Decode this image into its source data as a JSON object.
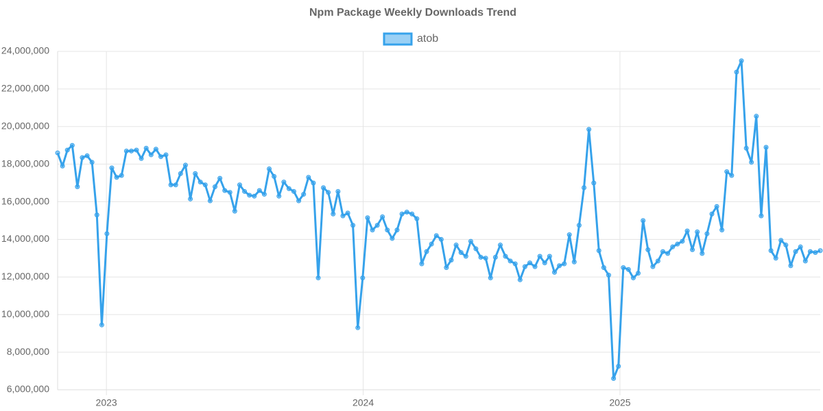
{
  "chart_data": {
    "type": "line",
    "title": "Npm Package Weekly Downloads Trend",
    "x": [
      2022.81,
      2022.829,
      2022.848,
      2022.867,
      2022.887,
      2022.906,
      2022.925,
      2022.944,
      2022.963,
      2022.982,
      2023.002,
      2023.021,
      2023.04,
      2023.059,
      2023.078,
      2023.097,
      2023.117,
      2023.136,
      2023.155,
      2023.174,
      2023.193,
      2023.212,
      2023.232,
      2023.251,
      2023.27,
      2023.289,
      2023.308,
      2023.327,
      2023.346,
      2023.366,
      2023.385,
      2023.404,
      2023.423,
      2023.442,
      2023.461,
      2023.481,
      2023.5,
      2023.519,
      2023.538,
      2023.557,
      2023.576,
      2023.596,
      2023.615,
      2023.634,
      2023.653,
      2023.672,
      2023.691,
      2023.711,
      2023.73,
      2023.749,
      2023.768,
      2023.787,
      2023.806,
      2023.825,
      2023.845,
      2023.864,
      2023.883,
      2023.902,
      2023.921,
      2023.94,
      2023.96,
      2023.979,
      2023.998,
      2024.017,
      2024.036,
      2024.055,
      2024.075,
      2024.094,
      2024.113,
      2024.132,
      2024.151,
      2024.17,
      2024.19,
      2024.209,
      2024.228,
      2024.247,
      2024.266,
      2024.285,
      2024.304,
      2024.324,
      2024.343,
      2024.362,
      2024.381,
      2024.4,
      2024.419,
      2024.439,
      2024.458,
      2024.477,
      2024.496,
      2024.515,
      2024.534,
      2024.554,
      2024.573,
      2024.592,
      2024.611,
      2024.63,
      2024.649,
      2024.669,
      2024.688,
      2024.707,
      2024.726,
      2024.745,
      2024.764,
      2024.783,
      2024.803,
      2024.822,
      2024.841,
      2024.86,
      2024.879,
      2024.898,
      2024.918,
      2024.937,
      2024.956,
      2024.975,
      2024.994,
      2025.013,
      2025.033,
      2025.052,
      2025.071,
      2025.09,
      2025.109,
      2025.128,
      2025.148,
      2025.167,
      2025.186,
      2025.205,
      2025.224,
      2025.243,
      2025.262,
      2025.282,
      2025.301,
      2025.32,
      2025.339,
      2025.358,
      2025.377,
      2025.397,
      2025.416,
      2025.435,
      2025.454,
      2025.473,
      2025.492,
      2025.512,
      2025.531,
      2025.55,
      2025.569,
      2025.588,
      2025.607,
      2025.627,
      2025.646,
      2025.665,
      2025.684,
      2025.703,
      2025.722,
      2025.741,
      2025.761,
      2025.78
    ],
    "series": [
      {
        "name": "atob",
        "color": "#36a2eb",
        "values": [
          18600000,
          17900000,
          18750000,
          19000000,
          16800000,
          18350000,
          18450000,
          18100000,
          15300000,
          9450000,
          14300000,
          17800000,
          17300000,
          17400000,
          18700000,
          18700000,
          18750000,
          18300000,
          18850000,
          18500000,
          18800000,
          18400000,
          18500000,
          16900000,
          16900000,
          17500000,
          17950000,
          16150000,
          17500000,
          17050000,
          16900000,
          16050000,
          16800000,
          17250000,
          16600000,
          16500000,
          15500000,
          16900000,
          16550000,
          16350000,
          16300000,
          16600000,
          16400000,
          17750000,
          17350000,
          16300000,
          17050000,
          16700000,
          16550000,
          16050000,
          16400000,
          17300000,
          17000000,
          11950000,
          16750000,
          16500000,
          15350000,
          16550000,
          15250000,
          15400000,
          14750000,
          9300000,
          11950000,
          15150000,
          14500000,
          14750000,
          15200000,
          14500000,
          14050000,
          14500000,
          15350000,
          15450000,
          15350000,
          15100000,
          12700000,
          13350000,
          13750000,
          14200000,
          14000000,
          12500000,
          12900000,
          13700000,
          13300000,
          13100000,
          13900000,
          13500000,
          13050000,
          13000000,
          11950000,
          13050000,
          13700000,
          13100000,
          12850000,
          12700000,
          11850000,
          12550000,
          12750000,
          12550000,
          13100000,
          12750000,
          13100000,
          12250000,
          12600000,
          12700000,
          14250000,
          12800000,
          14750000,
          16750000,
          19850000,
          17000000,
          13400000,
          12500000,
          12100000,
          6600000,
          7250000,
          12500000,
          12400000,
          11950000,
          12200000,
          15000000,
          13450000,
          12550000,
          12850000,
          13350000,
          13250000,
          13600000,
          13750000,
          13900000,
          14450000,
          13450000,
          14400000,
          13250000,
          14300000,
          15350000,
          15750000,
          14500000,
          17600000,
          17400000,
          22900000,
          23500000,
          18850000,
          18100000,
          20550000,
          15250000,
          18900000,
          13400000,
          13000000,
          13950000,
          13700000,
          12600000,
          13350000,
          13600000,
          12850000,
          13350000,
          13300000,
          13400000
        ]
      }
    ],
    "xlim": [
      2022.81,
      2025.78
    ],
    "xticks": [
      2023,
      2024,
      2025
    ],
    "ylim": [
      6000000,
      24000000
    ],
    "yticks": [
      {
        "value": 6000000,
        "label": "6,000,000"
      },
      {
        "value": 8000000,
        "label": "8,000,000"
      },
      {
        "value": 10000000,
        "label": "10,000,000"
      },
      {
        "value": 12000000,
        "label": "12,000,000"
      },
      {
        "value": 14000000,
        "label": "14,000,000"
      },
      {
        "value": 16000000,
        "label": "16,000,000"
      },
      {
        "value": 18000000,
        "label": "18,000,000"
      },
      {
        "value": 20000000,
        "label": "20,000,000"
      },
      {
        "value": 22000000,
        "label": "22,000,000"
      },
      {
        "value": 24000000,
        "label": "24,000,000"
      }
    ],
    "grid": true,
    "legend": "top"
  }
}
